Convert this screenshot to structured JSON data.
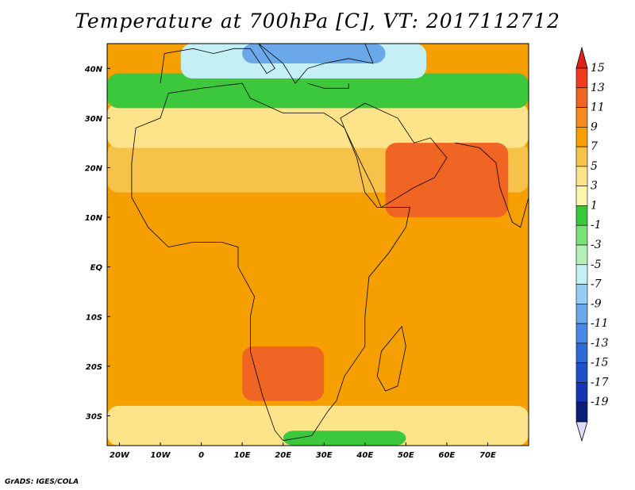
{
  "title": "Temperature at 700hPa [C], VT: 2017112712",
  "credit": "GrADS: IGES/COLA",
  "map": {
    "lon_range": [
      -23,
      80
    ],
    "lat_range": [
      -36,
      45
    ],
    "lon_ticks": [
      {
        "value": -20,
        "label": "20W"
      },
      {
        "value": -10,
        "label": "10W"
      },
      {
        "value": 0,
        "label": "0"
      },
      {
        "value": 10,
        "label": "10E"
      },
      {
        "value": 20,
        "label": "20E"
      },
      {
        "value": 30,
        "label": "30E"
      },
      {
        "value": 40,
        "label": "40E"
      },
      {
        "value": 50,
        "label": "50E"
      },
      {
        "value": 60,
        "label": "60E"
      },
      {
        "value": 70,
        "label": "70E"
      }
    ],
    "lat_ticks": [
      {
        "value": 40,
        "label": "40N"
      },
      {
        "value": 30,
        "label": "30N"
      },
      {
        "value": 20,
        "label": "20N"
      },
      {
        "value": 10,
        "label": "10N"
      },
      {
        "value": 0,
        "label": "EQ"
      },
      {
        "value": -10,
        "label": "10S"
      },
      {
        "value": -20,
        "label": "20S"
      },
      {
        "value": -30,
        "label": "30S"
      }
    ],
    "background_color": "#f5a000",
    "fields": [
      {
        "name": "warm-band-north",
        "value": 7,
        "lon": [
          -23,
          80
        ],
        "lat": [
          15,
          25
        ],
        "color": "#f7c24a"
      },
      {
        "name": "warm-band-upper",
        "value": 5,
        "lon": [
          -23,
          80
        ],
        "lat": [
          24,
          33
        ],
        "color": "#fde38a"
      },
      {
        "name": "cool-band",
        "value": 1,
        "lon": [
          -23,
          80
        ],
        "lat": [
          32,
          39
        ],
        "color": "#3cc83c"
      },
      {
        "name": "cold-mediterranean",
        "value": -3,
        "lon": [
          -5,
          55
        ],
        "lat": [
          38,
          45
        ],
        "color": "#c4f0f5"
      },
      {
        "name": "cold-core",
        "value": -7,
        "lon": [
          10,
          45
        ],
        "lat": [
          41,
          45
        ],
        "color": "#6aa8ea"
      },
      {
        "name": "hot-arabia",
        "value": 13,
        "lon": [
          45,
          75
        ],
        "lat": [
          10,
          25
        ],
        "color": "#f06424"
      },
      {
        "name": "hot-southern-africa",
        "value": 13,
        "lon": [
          10,
          30
        ],
        "lat": [
          -27,
          -16
        ],
        "color": "#f06424"
      },
      {
        "name": "cool-south",
        "value": 3,
        "lon": [
          -23,
          80
        ],
        "lat": [
          -36,
          -28
        ],
        "color": "#fde38a"
      },
      {
        "name": "cold-south",
        "value": 1,
        "lon": [
          20,
          50
        ],
        "lat": [
          -36,
          -33
        ],
        "color": "#3cc83c"
      }
    ]
  },
  "colorbar": {
    "labels": [
      "15",
      "13",
      "11",
      "9",
      "7",
      "5",
      "3",
      "1",
      "-1",
      "-3",
      "-5",
      "-7",
      "-9",
      "-11",
      "-13",
      "-15",
      "-17",
      "-19"
    ],
    "colors": [
      "#f03a1e",
      "#f06424",
      "#f58a1e",
      "#f5a000",
      "#f7c24a",
      "#fde38a",
      "#fdf5b0",
      "#3cc83c",
      "#7ae07a",
      "#b5f0b5",
      "#c4f0f5",
      "#96cdf5",
      "#6aa8ea",
      "#4a8ae6",
      "#2e6ad6",
      "#1e50c8",
      "#1436b4",
      "#0a1e7a"
    ],
    "top_arrow_color": "#e0201a",
    "bottom_arrow_color": "#dcdcfa"
  }
}
